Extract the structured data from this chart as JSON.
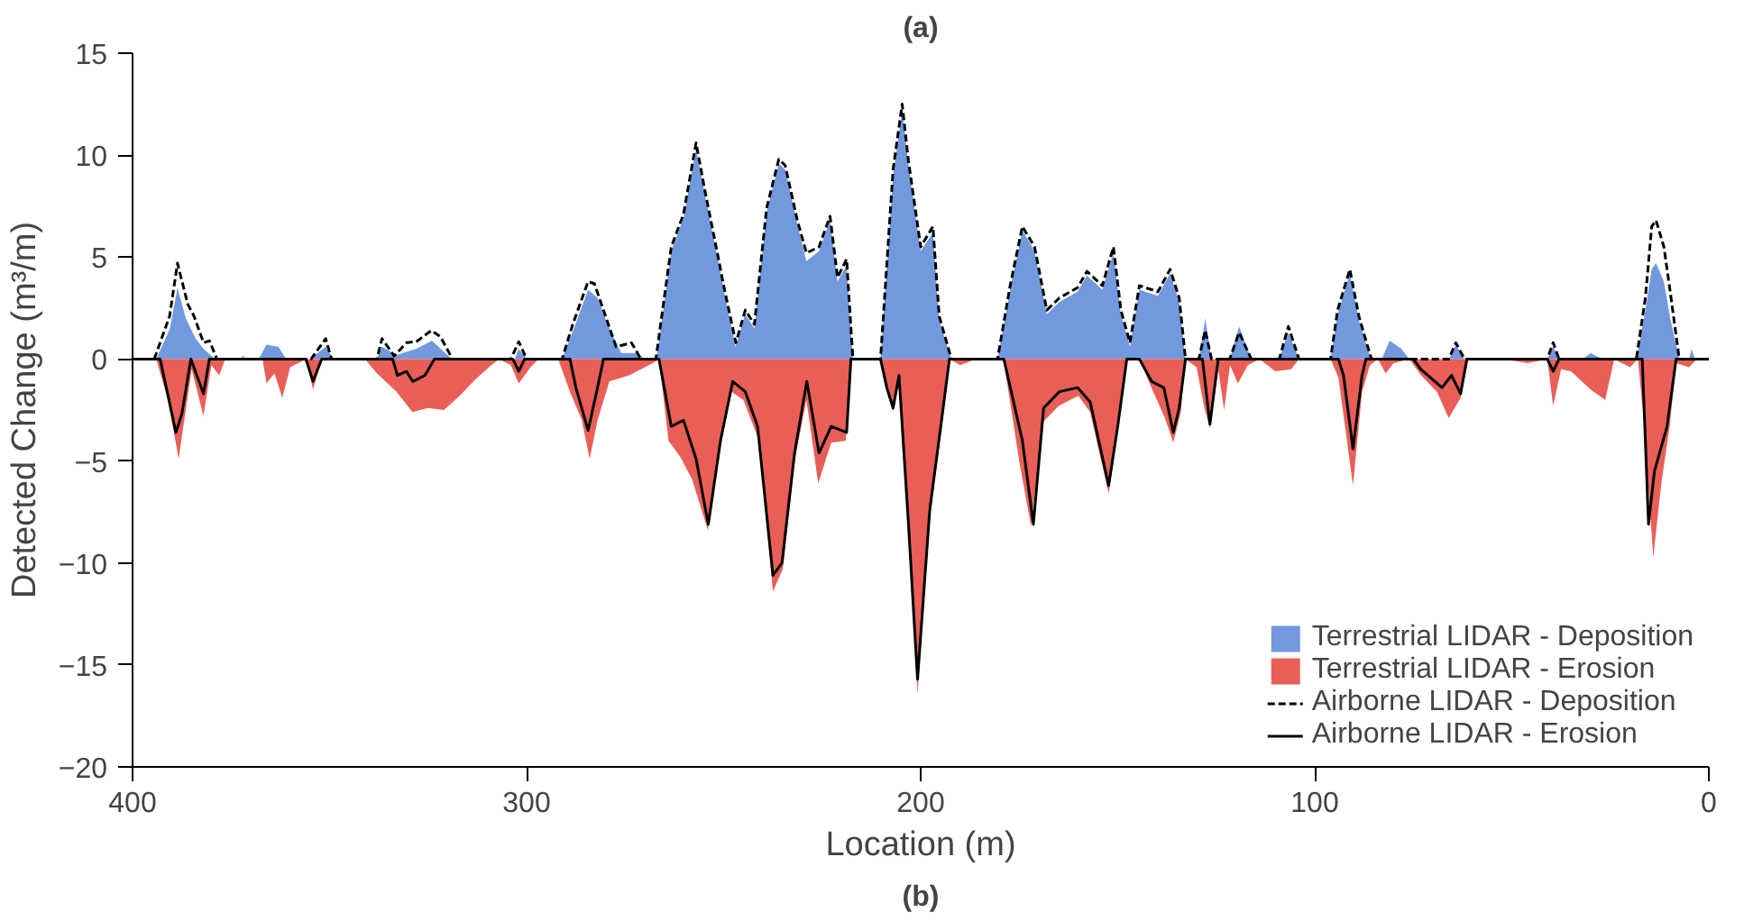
{
  "chart_data": {
    "type": "area",
    "title": "(a)",
    "xlabel": "Location (m)",
    "ylabel": "Detected Change (m³/m)",
    "annotations": [
      "(b)"
    ],
    "xlim": [
      400,
      0
    ],
    "xticks": [
      400,
      300,
      200,
      100,
      0
    ],
    "ylim": [
      -20,
      15
    ],
    "yticks": [
      -20,
      -15,
      -10,
      -5,
      0,
      5,
      10,
      15
    ],
    "legend": "bottom right",
    "series": [
      {
        "name": "Terrestrial LIDAR - Deposition",
        "color": "#6a94dc",
        "x": [
          400,
          394,
          390.5,
          388.6,
          386.5,
          384,
          382,
          379,
          372.5,
          372,
          371.5,
          368,
          366,
          363,
          361,
          355,
          351,
          349,
          338,
          336.7,
          333,
          328,
          324,
          319,
          303,
          302,
          300,
          291,
          288,
          284.4,
          282,
          279,
          276,
          272,
          270,
          267,
          263.3,
          260.2,
          257,
          254.7,
          251.6,
          250,
          247,
          244.5,
          242.2,
          239.1,
          236,
          234.4,
          231.3,
          229,
          225.8,
          223,
          221.1,
          218.8,
          217.2,
          210.2,
          207,
          204.7,
          203.1,
          200,
          196.9,
          195.3,
          192.2,
          180.5,
          177.3,
          174.2,
          171.1,
          168,
          164.8,
          160.2,
          157.8,
          153.9,
          151.1,
          149.2,
          146.9,
          144.5,
          139.8,
          136.7,
          134.4,
          132.8,
          129.4,
          127.8,
          126.2,
          121.6,
          119.2,
          116.1,
          109,
          106.7,
          104,
          96,
          94.2,
          91.1,
          88.8,
          86.4,
          85.6,
          83,
          81,
          78,
          76,
          66,
          64.2,
          62,
          41,
          39.5,
          38,
          32,
          30,
          27,
          18.4,
          16.1,
          14.5,
          13.4,
          11.4,
          9.8,
          7.5,
          5,
          4.4,
          3.5,
          0
        ],
        "values": [
          0,
          0,
          1.5,
          3.5,
          2.0,
          1.0,
          0.5,
          0,
          0,
          0.2,
          0,
          0,
          0.7,
          0.6,
          0,
          0,
          0.6,
          0,
          0,
          0.6,
          0.2,
          0.5,
          0.9,
          0,
          0,
          0.5,
          0,
          0,
          1.5,
          3.4,
          3.0,
          1.5,
          0.3,
          0.3,
          0,
          0,
          5.3,
          6.9,
          10.3,
          8.0,
          5.0,
          3.4,
          0.6,
          2.2,
          1.5,
          7.2,
          9.6,
          9.3,
          6.6,
          4.8,
          5.3,
          6.8,
          3.8,
          4.6,
          0,
          0,
          9.0,
          12.2,
          9.5,
          5.3,
          6.2,
          1.9,
          0,
          0,
          3.4,
          6.3,
          5.3,
          2.2,
          2.8,
          3.3,
          4.1,
          3.4,
          5.2,
          2.2,
          0.6,
          3.4,
          3.1,
          4.2,
          2.8,
          0,
          0,
          2.0,
          0,
          0,
          1.6,
          0,
          0,
          1.3,
          0,
          0,
          2.2,
          4.2,
          1.9,
          0.4,
          0,
          0,
          0.9,
          0.5,
          0,
          0,
          0.7,
          0,
          0,
          0.6,
          0,
          0,
          0.3,
          0,
          0,
          2.4,
          4.4,
          4.7,
          3.8,
          2.0,
          0,
          0,
          0.5,
          0,
          0
        ]
      },
      {
        "name": "Terrestrial LIDAR - Erosion",
        "color": "#e8564e",
        "x": [
          400,
          394,
          391,
          388.3,
          386.5,
          385,
          382,
          380,
          378,
          376.5,
          367,
          366,
          364,
          362,
          360,
          356,
          354.2,
          352,
          341,
          338,
          333,
          329,
          325,
          321,
          317,
          313,
          309,
          307,
          304,
          302,
          299,
          297,
          292,
          289,
          286,
          284,
          282,
          279,
          274,
          270,
          268,
          266.4,
          264,
          261,
          258,
          254,
          251,
          248,
          245,
          241,
          237.5,
          235,
          232,
          229,
          226,
          222.7,
          219,
          217.7,
          210,
          208.6,
          207,
          205.5,
          203,
          200.8,
          197.7,
          194.5,
          192.7,
          190,
          186,
          179,
          175,
          172,
          169,
          165,
          160,
          157,
          152.3,
          150,
          147.7,
          144.5,
          141,
          138,
          135.9,
          134,
          132.8,
          130,
          128,
          126.6,
          124.5,
          123,
          121.5,
          119.5,
          117,
          114,
          110,
          106,
          104,
          96,
          94,
          90.3,
          88,
          86,
          84,
          82,
          80,
          76,
          73,
          69,
          66,
          63,
          61,
          52,
          46,
          41,
          39.5,
          37.5,
          35,
          30,
          26.3,
          24,
          20,
          18,
          16.5,
          14.1,
          12,
          10,
          8.3,
          5,
          3,
          0
        ],
        "values": [
          0,
          0,
          -2.0,
          -4.9,
          -2.5,
          -0.5,
          -2.8,
          -0.3,
          -0.8,
          0,
          0,
          -1.2,
          -0.7,
          -1.9,
          -0.4,
          0,
          -1.5,
          0,
          0,
          -0.7,
          -1.6,
          -2.6,
          -2.4,
          -2.5,
          -1.8,
          -1.0,
          -0.3,
          0,
          -0.3,
          -1.2,
          -0.4,
          0,
          0,
          -1.6,
          -3.0,
          -4.9,
          -3.0,
          -1.1,
          -0.8,
          -0.4,
          -0.2,
          0,
          -4.0,
          -4.8,
          -5.9,
          -8.4,
          -4.4,
          -1.6,
          -2.0,
          -4.0,
          -11.4,
          -10.3,
          -5.0,
          -2.0,
          -6.1,
          -4.1,
          -4.0,
          0,
          0,
          -1.6,
          -2.6,
          -1.0,
          -8.5,
          -16.4,
          -7.8,
          -3.1,
          0,
          -0.3,
          0,
          0,
          -5.0,
          -8.2,
          -3.1,
          -2.3,
          -1.8,
          -2.6,
          -6.6,
          -3.6,
          0,
          0,
          -1.6,
          -2.9,
          -4.1,
          -2.6,
          0,
          -0.4,
          -2.4,
          -3.4,
          -0.5,
          -2.5,
          -0.3,
          -1.2,
          -0.3,
          0,
          -0.6,
          -0.5,
          0,
          0,
          -0.9,
          -6.2,
          -1.6,
          -0.3,
          0,
          -0.7,
          -0.2,
          0,
          -0.8,
          -1.6,
          -2.9,
          -1.9,
          0,
          0,
          -0.2,
          0,
          -2.3,
          -0.5,
          -0.6,
          -1.5,
          -2.0,
          0,
          -0.4,
          0,
          -3.0,
          -9.7,
          -6.0,
          -3.4,
          -0.2,
          -0.4,
          0,
          0
        ]
      },
      {
        "name": "Airborne LIDAR - Deposition",
        "type": "line",
        "line_style": "dashed",
        "color": "#000000",
        "x": [
          400,
          394.5,
          390.6,
          388.6,
          386,
          384.4,
          382,
          380.5,
          378.6,
          354.7,
          351,
          349.5,
          338,
          336.7,
          333.6,
          330.5,
          328,
          324.2,
          321.9,
          318.8,
          304,
          302,
          300,
          291,
          288.3,
          284.4,
          282.8,
          280.5,
          277.3,
          273.4,
          271,
          267.2,
          263.3,
          260.2,
          257,
          254.7,
          251.6,
          250,
          246.9,
          244.5,
          242.2,
          239.1,
          236,
          234.4,
          231.3,
          229,
          225.8,
          223,
          221.1,
          218.8,
          217.2,
          210.2,
          207,
          204.7,
          203.1,
          200,
          196.9,
          195.3,
          192.2,
          180.5,
          177.3,
          174.2,
          171.1,
          168,
          164.8,
          160.2,
          157.8,
          153.9,
          151.1,
          149.2,
          146.9,
          144.5,
          139.8,
          136.7,
          134.4,
          132.8,
          129.4,
          127.8,
          126.2,
          121.6,
          119.2,
          116.1,
          109,
          106.7,
          104,
          96,
          94.2,
          91.1,
          88.8,
          86.4,
          85.6,
          66,
          64.2,
          62,
          41,
          39.5,
          38,
          18.4,
          16.1,
          14.5,
          13.4,
          11.4,
          9.8,
          7.5,
          0
        ],
        "values": [
          0,
          0,
          2.1,
          4.7,
          2.7,
          2.1,
          0.8,
          0.9,
          0,
          0,
          1.0,
          0,
          0,
          1.0,
          0.15,
          0.8,
          0.85,
          1.4,
          1.1,
          0,
          0,
          0.85,
          0,
          0,
          1.7,
          3.8,
          3.7,
          2.4,
          0.6,
          0.8,
          0,
          0,
          5.5,
          7.1,
          10.6,
          8.2,
          5.2,
          3.6,
          0.8,
          2.4,
          1.7,
          7.4,
          9.8,
          9.5,
          6.8,
          5.2,
          5.5,
          7.0,
          4.0,
          4.9,
          0,
          0,
          9.3,
          12.5,
          9.7,
          5.5,
          6.5,
          2.1,
          0,
          0,
          3.6,
          6.5,
          5.5,
          2.4,
          3.0,
          3.5,
          4.3,
          3.6,
          5.5,
          2.4,
          0.8,
          3.6,
          3.3,
          4.4,
          3.0,
          0,
          0,
          1.4,
          0,
          0,
          1.3,
          0,
          0,
          1.6,
          0,
          0,
          2.4,
          4.4,
          2.1,
          0.5,
          0,
          0,
          0.8,
          0,
          0,
          0.8,
          0,
          0,
          3.0,
          6.5,
          6.8,
          5.5,
          3.3,
          0,
          0
        ]
      },
      {
        "name": "Airborne LIDAR - Erosion",
        "type": "line",
        "line_style": "solid",
        "color": "#000000",
        "x": [
          400,
          393,
          389,
          387.5,
          385.2,
          382,
          380.5,
          356,
          354.2,
          352,
          334,
          332.8,
          330.5,
          328.9,
          325.8,
          323.4,
          303.5,
          302,
          300.5,
          289,
          287.5,
          284.4,
          282,
          280.5,
          266.4,
          263.3,
          260.2,
          257,
          253.9,
          250.8,
          247.7,
          244.5,
          241.4,
          237.5,
          235.2,
          232,
          228.9,
          225.8,
          222.7,
          218.8,
          217.7,
          210.2,
          208.6,
          207,
          205.5,
          203.1,
          200.8,
          197.7,
          194.5,
          192.7,
          178.9,
          174.2,
          171.4,
          168.8,
          164.8,
          160.2,
          157,
          152.3,
          150,
          147.7,
          144.5,
          141.4,
          138.3,
          135.9,
          134.4,
          132.8,
          128.5,
          126.6,
          124.5,
          94,
          92.7,
          90.3,
          88,
          87,
          75,
          73.1,
          67.7,
          65.3,
          63,
          61.4,
          41,
          39.5,
          38,
          16.9,
          15.3,
          13.8,
          10.6,
          8.3,
          0
        ],
        "values": [
          0,
          0,
          -3.6,
          -2.7,
          0,
          -1.7,
          0,
          0,
          -1.1,
          0,
          0,
          -0.8,
          -0.6,
          -1.1,
          -0.8,
          0,
          0,
          -0.6,
          0,
          0,
          -1.4,
          -3.5,
          -1.4,
          0,
          0,
          -3.3,
          -3.0,
          -4.9,
          -8.1,
          -4.0,
          -1.1,
          -1.6,
          -3.3,
          -10.6,
          -10.0,
          -4.6,
          -1.1,
          -4.6,
          -3.3,
          -3.6,
          0,
          0,
          -1.4,
          -2.4,
          -0.8,
          -8.1,
          -15.7,
          -7.4,
          -2.7,
          0,
          0,
          -4.0,
          -8.1,
          -2.4,
          -1.6,
          -1.4,
          -2.1,
          -6.2,
          -3.3,
          0,
          0,
          -1.1,
          -1.4,
          -3.6,
          -2.4,
          0,
          0,
          -3.2,
          0,
          0,
          -0.8,
          -4.4,
          -0.8,
          0,
          0,
          -0.5,
          -1.4,
          -0.8,
          -1.7,
          0,
          0,
          -0.6,
          0,
          0,
          -8.1,
          -5.5,
          -3.3,
          0,
          0
        ]
      }
    ]
  }
}
